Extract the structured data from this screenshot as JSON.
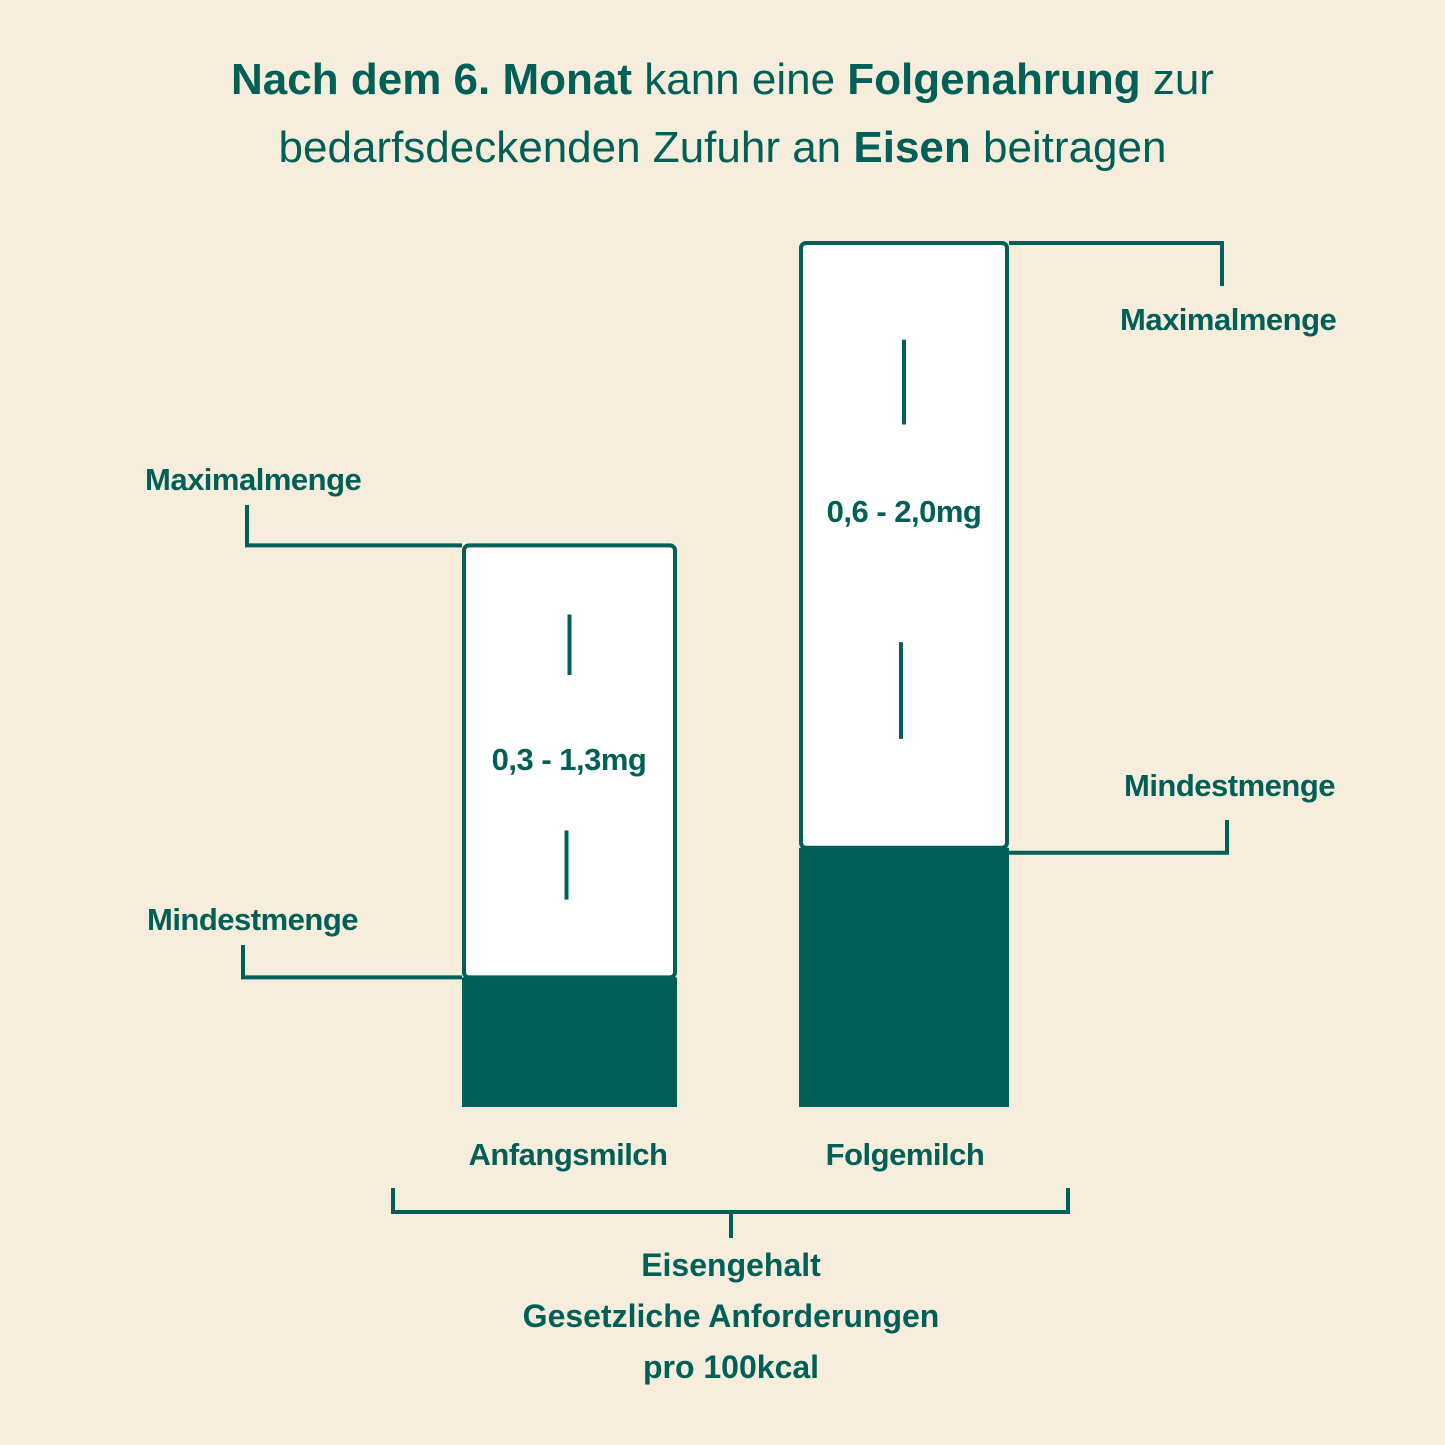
{
  "title": {
    "line1": [
      {
        "text": "Nach dem 6. Monat",
        "bold": true
      },
      {
        "text": " kann eine ",
        "bold": false
      },
      {
        "text": "Folgenahrung",
        "bold": true
      },
      {
        "text": " zur",
        "bold": false
      }
    ],
    "line2": [
      {
        "text": "bedarfsdeckenden Zufuhr an ",
        "bold": false
      },
      {
        "text": "Eisen",
        "bold": true
      },
      {
        "text": " beitragen",
        "bold": false
      }
    ]
  },
  "colors": {
    "background": "#f6eddc",
    "accent": "#005f56",
    "bar_box": "#ffffff"
  },
  "chart_data": {
    "type": "bar",
    "variant": "range",
    "categories": [
      "Anfangsmilch",
      "Folgemilch"
    ],
    "unit": "mg",
    "series": [
      {
        "name": "Mindestmenge",
        "values": [
          0.3,
          0.6
        ]
      },
      {
        "name": "Maximalmenge",
        "values": [
          1.3,
          2.0
        ]
      }
    ],
    "range_labels": [
      "0,3 - 1,3mg",
      "0,6 - 2,0mg"
    ],
    "annotations": {
      "max": "Maximalmenge",
      "min": "Mindestmenge"
    },
    "xlabel": [
      "Eisengehalt",
      "Gesetzliche Anforderungen",
      "pro 100kcal"
    ],
    "grid": false
  }
}
